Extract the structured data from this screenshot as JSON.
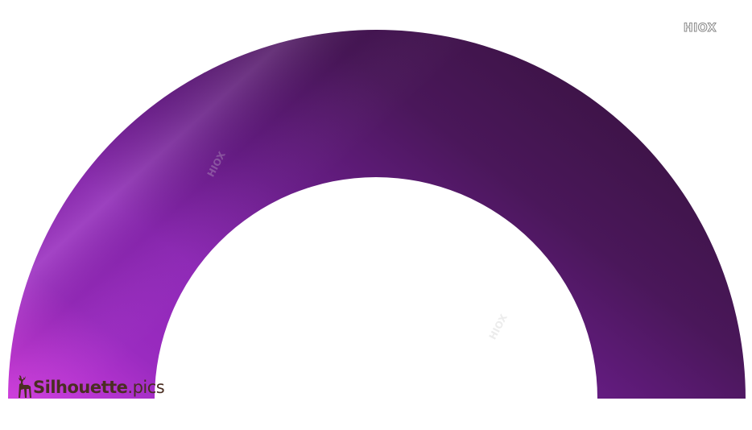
{
  "image": {
    "subject": "purple-half-ring-arc-icon",
    "colors": {
      "arc_light": "#c23ad8",
      "arc_mid": "#8a2cb0",
      "arc_dark": "#3e1546",
      "background": "#ffffff",
      "brand_text": "#4a2e22",
      "watermark": "#8a8a8a"
    }
  },
  "watermark": {
    "corner_text": "HIOX",
    "overlay_text": "HIOX"
  },
  "brand": {
    "name": "Silhouette",
    "ext": ".pics",
    "icon": "deer-icon"
  }
}
